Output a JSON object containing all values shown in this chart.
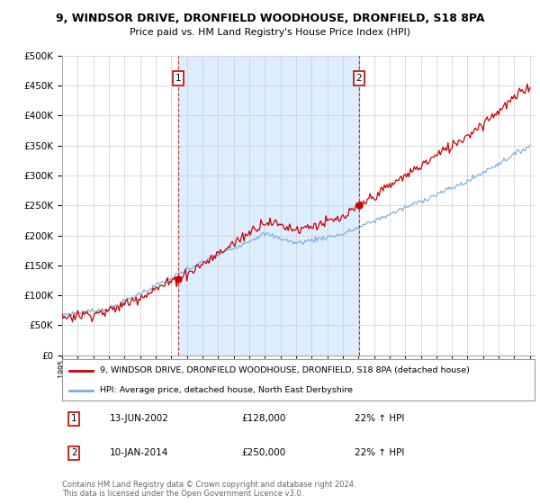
{
  "title1": "9, WINDSOR DRIVE, DRONFIELD WOODHOUSE, DRONFIELD, S18 8PA",
  "title2": "Price paid vs. HM Land Registry's House Price Index (HPI)",
  "legend_line1": "9, WINDSOR DRIVE, DRONFIELD WOODHOUSE, DRONFIELD, S18 8PA (detached house)",
  "legend_line2": "HPI: Average price, detached house, North East Derbyshire",
  "footnote": "Contains HM Land Registry data © Crown copyright and database right 2024.\nThis data is licensed under the Open Government Licence v3.0.",
  "transaction1_date": "13-JUN-2002",
  "transaction1_price": "£128,000",
  "transaction1_hpi": "22% ↑ HPI",
  "transaction2_date": "10-JAN-2014",
  "transaction2_price": "£250,000",
  "transaction2_hpi": "22% ↑ HPI",
  "red_color": "#cc0000",
  "blue_color": "#7aaddd",
  "shade_color": "#ddeeff",
  "background_color": "#ffffff",
  "grid_color": "#cccccc",
  "ylim": [
    0,
    500000
  ],
  "yticks": [
    0,
    50000,
    100000,
    150000,
    200000,
    250000,
    300000,
    350000,
    400000,
    450000,
    500000
  ],
  "start_year": 1995,
  "end_year": 2025
}
